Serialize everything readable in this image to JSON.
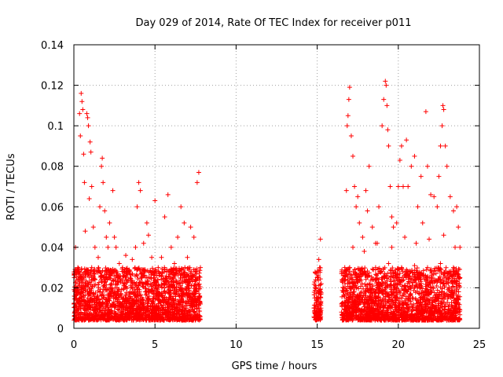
{
  "chart_data": {
    "type": "scatter",
    "title": "Day 029 of 2014, Rate Of TEC Index for receiver p011",
    "xlabel": "GPS time / hours",
    "ylabel": "ROTI / TECUs",
    "xlim": [
      0,
      25
    ],
    "ylim": [
      0,
      0.14
    ],
    "xticks": [
      0,
      5,
      10,
      15,
      20,
      25
    ],
    "xtick_labels": [
      "0",
      "5",
      "10",
      "15",
      "20",
      "25"
    ],
    "yticks": [
      0,
      0.02,
      0.04,
      0.06,
      0.08,
      0.1,
      0.12,
      0.14
    ],
    "ytick_labels": [
      "0",
      "0.02",
      "0.04",
      "0.06",
      "0.08",
      "0.1",
      "0.12",
      "0.14"
    ],
    "grid": true,
    "marker": "+",
    "color": "#ff0000",
    "series": [
      {
        "name": "ROTI",
        "points": [
          [
            0.0,
            0.012
          ],
          [
            0.1,
            0.04
          ],
          [
            0.15,
            0.018
          ],
          [
            0.2,
            0.009
          ],
          [
            0.25,
            0.03
          ],
          [
            0.3,
            0.022
          ],
          [
            0.35,
            0.106
          ],
          [
            0.4,
            0.095
          ],
          [
            0.45,
            0.116
          ],
          [
            0.5,
            0.112
          ],
          [
            0.55,
            0.108
          ],
          [
            0.6,
            0.086
          ],
          [
            0.65,
            0.072
          ],
          [
            0.7,
            0.048
          ],
          [
            0.8,
            0.106
          ],
          [
            0.85,
            0.104
          ],
          [
            0.9,
            0.1
          ],
          [
            0.95,
            0.064
          ],
          [
            1.0,
            0.092
          ],
          [
            1.05,
            0.087
          ],
          [
            1.1,
            0.07
          ],
          [
            1.2,
            0.05
          ],
          [
            1.3,
            0.04
          ],
          [
            1.4,
            0.028
          ],
          [
            1.5,
            0.035
          ],
          [
            1.6,
            0.06
          ],
          [
            1.7,
            0.08
          ],
          [
            1.75,
            0.084
          ],
          [
            1.8,
            0.072
          ],
          [
            1.9,
            0.058
          ],
          [
            2.0,
            0.045
          ],
          [
            2.1,
            0.04
          ],
          [
            2.2,
            0.052
          ],
          [
            2.4,
            0.068
          ],
          [
            2.5,
            0.045
          ],
          [
            2.6,
            0.04
          ],
          [
            2.8,
            0.032
          ],
          [
            3.0,
            0.03
          ],
          [
            3.2,
            0.036
          ],
          [
            3.4,
            0.028
          ],
          [
            3.6,
            0.034
          ],
          [
            3.8,
            0.04
          ],
          [
            3.9,
            0.06
          ],
          [
            4.0,
            0.072
          ],
          [
            4.1,
            0.068
          ],
          [
            4.3,
            0.042
          ],
          [
            4.5,
            0.052
          ],
          [
            4.6,
            0.046
          ],
          [
            4.8,
            0.035
          ],
          [
            5.0,
            0.063
          ],
          [
            5.2,
            0.03
          ],
          [
            5.4,
            0.035
          ],
          [
            5.6,
            0.055
          ],
          [
            5.8,
            0.066
          ],
          [
            6.0,
            0.04
          ],
          [
            6.2,
            0.032
          ],
          [
            6.4,
            0.045
          ],
          [
            6.6,
            0.06
          ],
          [
            6.8,
            0.052
          ],
          [
            7.0,
            0.035
          ],
          [
            7.2,
            0.05
          ],
          [
            7.4,
            0.045
          ],
          [
            7.6,
            0.072
          ],
          [
            7.7,
            0.077
          ],
          [
            7.8,
            0.03
          ],
          [
            0.05,
            0.008
          ],
          [
            0.2,
            0.014
          ],
          [
            0.3,
            0.01
          ],
          [
            0.5,
            0.02
          ],
          [
            0.6,
            0.013
          ],
          [
            0.8,
            0.011
          ],
          [
            1.0,
            0.016
          ],
          [
            1.2,
            0.009
          ],
          [
            1.4,
            0.012
          ],
          [
            1.6,
            0.018
          ],
          [
            1.8,
            0.01
          ],
          [
            2.0,
            0.014
          ],
          [
            2.2,
            0.008
          ],
          [
            2.4,
            0.012
          ],
          [
            2.6,
            0.016
          ],
          [
            2.8,
            0.009
          ],
          [
            3.0,
            0.013
          ],
          [
            3.2,
            0.01
          ],
          [
            3.4,
            0.017
          ],
          [
            3.6,
            0.011
          ],
          [
            3.8,
            0.009
          ],
          [
            4.0,
            0.014
          ],
          [
            4.2,
            0.012
          ],
          [
            4.4,
            0.018
          ],
          [
            4.6,
            0.01
          ],
          [
            4.8,
            0.013
          ],
          [
            5.0,
            0.009
          ],
          [
            5.2,
            0.016
          ],
          [
            5.4,
            0.011
          ],
          [
            5.6,
            0.014
          ],
          [
            5.8,
            0.008
          ],
          [
            6.0,
            0.012
          ],
          [
            6.2,
            0.017
          ],
          [
            6.4,
            0.01
          ],
          [
            6.6,
            0.013
          ],
          [
            6.8,
            0.009
          ],
          [
            7.0,
            0.015
          ],
          [
            7.2,
            0.011
          ],
          [
            7.4,
            0.013
          ],
          [
            7.6,
            0.01
          ],
          [
            7.8,
            0.012
          ],
          [
            0.4,
            0.025
          ],
          [
            0.7,
            0.028
          ],
          [
            1.1,
            0.03
          ],
          [
            1.3,
            0.024
          ],
          [
            1.7,
            0.026
          ],
          [
            2.3,
            0.022
          ],
          [
            2.7,
            0.025
          ],
          [
            3.1,
            0.021
          ],
          [
            3.5,
            0.024
          ],
          [
            3.9,
            0.026
          ],
          [
            4.3,
            0.022
          ],
          [
            4.7,
            0.025
          ],
          [
            5.1,
            0.023
          ],
          [
            5.5,
            0.024
          ],
          [
            5.9,
            0.021
          ],
          [
            6.3,
            0.027
          ],
          [
            6.7,
            0.023
          ],
          [
            7.1,
            0.026
          ],
          [
            7.5,
            0.024
          ],
          [
            14.8,
            0.01
          ],
          [
            14.85,
            0.015
          ],
          [
            14.9,
            0.02
          ],
          [
            14.95,
            0.005
          ],
          [
            15.0,
            0.025
          ],
          [
            15.05,
            0.018
          ],
          [
            15.1,
            0.012
          ],
          [
            15.1,
            0.034
          ],
          [
            15.15,
            0.03
          ],
          [
            15.2,
            0.044
          ],
          [
            15.2,
            0.008
          ],
          [
            15.25,
            0.022
          ],
          [
            16.5,
            0.012
          ],
          [
            16.6,
            0.02
          ],
          [
            16.7,
            0.03
          ],
          [
            16.8,
            0.068
          ],
          [
            16.85,
            0.1
          ],
          [
            16.9,
            0.105
          ],
          [
            16.95,
            0.113
          ],
          [
            17.0,
            0.119
          ],
          [
            17.1,
            0.095
          ],
          [
            17.2,
            0.085
          ],
          [
            17.3,
            0.07
          ],
          [
            17.4,
            0.06
          ],
          [
            17.5,
            0.065
          ],
          [
            17.6,
            0.052
          ],
          [
            17.8,
            0.045
          ],
          [
            18.0,
            0.068
          ],
          [
            18.1,
            0.058
          ],
          [
            18.2,
            0.08
          ],
          [
            18.4,
            0.05
          ],
          [
            18.6,
            0.042
          ],
          [
            18.8,
            0.06
          ],
          [
            19.0,
            0.1
          ],
          [
            19.1,
            0.113
          ],
          [
            19.2,
            0.122
          ],
          [
            19.25,
            0.12
          ],
          [
            19.3,
            0.11
          ],
          [
            19.35,
            0.098
          ],
          [
            19.4,
            0.09
          ],
          [
            19.5,
            0.07
          ],
          [
            19.6,
            0.055
          ],
          [
            19.7,
            0.05
          ],
          [
            19.9,
            0.052
          ],
          [
            20.0,
            0.07
          ],
          [
            20.1,
            0.083
          ],
          [
            20.2,
            0.09
          ],
          [
            20.3,
            0.07
          ],
          [
            20.5,
            0.093
          ],
          [
            20.6,
            0.07
          ],
          [
            20.8,
            0.08
          ],
          [
            21.0,
            0.085
          ],
          [
            21.2,
            0.06
          ],
          [
            21.4,
            0.075
          ],
          [
            21.5,
            0.052
          ],
          [
            21.7,
            0.107
          ],
          [
            21.8,
            0.08
          ],
          [
            22.0,
            0.066
          ],
          [
            22.2,
            0.065
          ],
          [
            22.4,
            0.06
          ],
          [
            22.5,
            0.075
          ],
          [
            22.6,
            0.09
          ],
          [
            22.7,
            0.1
          ],
          [
            22.75,
            0.11
          ],
          [
            22.8,
            0.108
          ],
          [
            22.9,
            0.09
          ],
          [
            23.0,
            0.08
          ],
          [
            23.2,
            0.065
          ],
          [
            23.4,
            0.058
          ],
          [
            23.6,
            0.06
          ],
          [
            23.7,
            0.05
          ],
          [
            23.8,
            0.04
          ],
          [
            16.5,
            0.008
          ],
          [
            16.7,
            0.013
          ],
          [
            16.9,
            0.01
          ],
          [
            17.1,
            0.016
          ],
          [
            17.3,
            0.011
          ],
          [
            17.5,
            0.014
          ],
          [
            17.7,
            0.009
          ],
          [
            17.9,
            0.013
          ],
          [
            18.1,
            0.01
          ],
          [
            18.3,
            0.016
          ],
          [
            18.5,
            0.012
          ],
          [
            18.7,
            0.009
          ],
          [
            18.9,
            0.014
          ],
          [
            19.1,
            0.011
          ],
          [
            19.3,
            0.017
          ],
          [
            19.5,
            0.01
          ],
          [
            19.7,
            0.013
          ],
          [
            19.9,
            0.009
          ],
          [
            20.1,
            0.015
          ],
          [
            20.3,
            0.012
          ],
          [
            20.5,
            0.01
          ],
          [
            20.7,
            0.016
          ],
          [
            20.9,
            0.011
          ],
          [
            21.1,
            0.014
          ],
          [
            21.3,
            0.009
          ],
          [
            21.5,
            0.013
          ],
          [
            21.7,
            0.012
          ],
          [
            21.9,
            0.017
          ],
          [
            22.1,
            0.01
          ],
          [
            22.3,
            0.014
          ],
          [
            22.5,
            0.009
          ],
          [
            22.7,
            0.013
          ],
          [
            22.9,
            0.011
          ],
          [
            23.1,
            0.016
          ],
          [
            23.3,
            0.01
          ],
          [
            23.5,
            0.013
          ],
          [
            23.7,
            0.012
          ],
          [
            23.8,
            0.009
          ],
          [
            16.6,
            0.026
          ],
          [
            17.0,
            0.03
          ],
          [
            17.4,
            0.024
          ],
          [
            17.8,
            0.028
          ],
          [
            18.2,
            0.026
          ],
          [
            18.6,
            0.03
          ],
          [
            19.0,
            0.025
          ],
          [
            19.4,
            0.032
          ],
          [
            19.8,
            0.027
          ],
          [
            20.2,
            0.03
          ],
          [
            20.6,
            0.026
          ],
          [
            21.0,
            0.031
          ],
          [
            21.4,
            0.027
          ],
          [
            21.8,
            0.03
          ],
          [
            22.2,
            0.028
          ],
          [
            22.6,
            0.032
          ],
          [
            23.0,
            0.027
          ],
          [
            23.4,
            0.03
          ],
          [
            23.8,
            0.025
          ],
          [
            17.2,
            0.04
          ],
          [
            17.9,
            0.038
          ],
          [
            18.7,
            0.042
          ],
          [
            19.6,
            0.04
          ],
          [
            20.4,
            0.045
          ],
          [
            21.1,
            0.042
          ],
          [
            21.9,
            0.044
          ],
          [
            22.8,
            0.046
          ],
          [
            23.5,
            0.04
          ]
        ],
        "band_segments": [
          [
            0.0,
            7.8
          ],
          [
            14.8,
            15.25
          ],
          [
            16.5,
            23.8
          ]
        ],
        "band_typical_range": [
          0.004,
          0.03
        ]
      }
    ]
  }
}
